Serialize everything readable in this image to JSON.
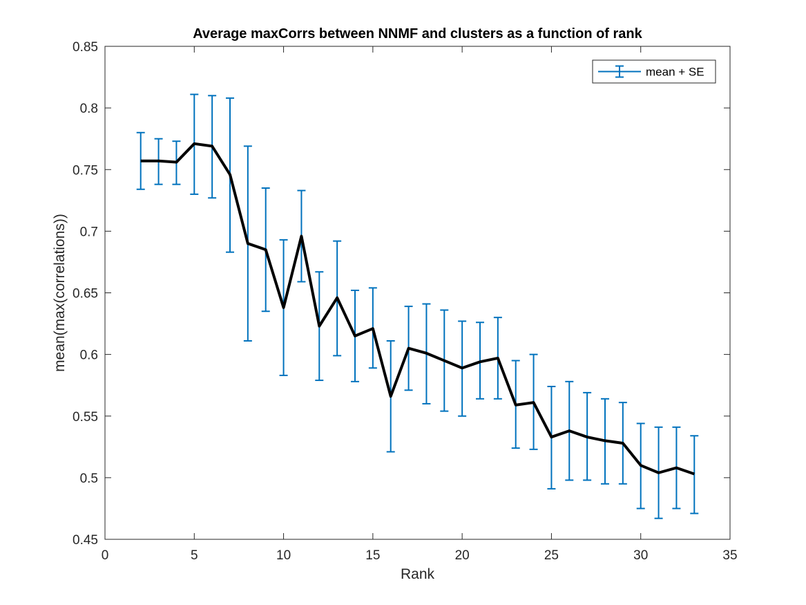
{
  "chart_data": {
    "type": "line",
    "title": "Average maxCorrs between NNMF and clusters as a function of rank",
    "xlabel": "Rank",
    "ylabel": "mean(max(correlations))",
    "xlim": [
      0,
      35
    ],
    "ylim": [
      0.45,
      0.85
    ],
    "x_ticks": [
      "0",
      "5",
      "10",
      "15",
      "20",
      "25",
      "30",
      "35"
    ],
    "y_ticks": [
      "0.45",
      "0.5",
      "0.55",
      "0.6",
      "0.65",
      "0.7",
      "0.75",
      "0.8",
      "0.85"
    ],
    "grid": false,
    "legend": {
      "position": "top-right",
      "label": "mean + SE"
    },
    "colors": {
      "errorbar": "#0072BD",
      "line": "#000000",
      "axes": "#262626"
    },
    "x": [
      2,
      3,
      4,
      5,
      6,
      7,
      8,
      9,
      10,
      11,
      12,
      13,
      14,
      15,
      16,
      17,
      18,
      19,
      20,
      21,
      22,
      23,
      24,
      25,
      26,
      27,
      28,
      29,
      30,
      31,
      32,
      33
    ],
    "mean": [
      0.757,
      0.757,
      0.756,
      0.771,
      0.769,
      0.746,
      0.69,
      0.685,
      0.638,
      0.696,
      0.623,
      0.646,
      0.615,
      0.621,
      0.566,
      0.605,
      0.601,
      0.595,
      0.589,
      0.594,
      0.597,
      0.559,
      0.561,
      0.533,
      0.538,
      0.533,
      0.53,
      0.528,
      0.51,
      0.504,
      0.508,
      0.503
    ],
    "lower": [
      0.734,
      0.738,
      0.738,
      0.73,
      0.727,
      0.683,
      0.611,
      0.635,
      0.583,
      0.659,
      0.579,
      0.599,
      0.578,
      0.589,
      0.521,
      0.571,
      0.56,
      0.554,
      0.55,
      0.564,
      0.564,
      0.524,
      0.523,
      0.491,
      0.498,
      0.498,
      0.495,
      0.495,
      0.475,
      0.467,
      0.475,
      0.471
    ],
    "upper": [
      0.78,
      0.775,
      0.773,
      0.811,
      0.81,
      0.808,
      0.769,
      0.735,
      0.693,
      0.733,
      0.667,
      0.692,
      0.652,
      0.654,
      0.611,
      0.639,
      0.641,
      0.636,
      0.627,
      0.626,
      0.63,
      0.595,
      0.6,
      0.574,
      0.578,
      0.569,
      0.564,
      0.561,
      0.544,
      0.541,
      0.541,
      0.534
    ]
  }
}
